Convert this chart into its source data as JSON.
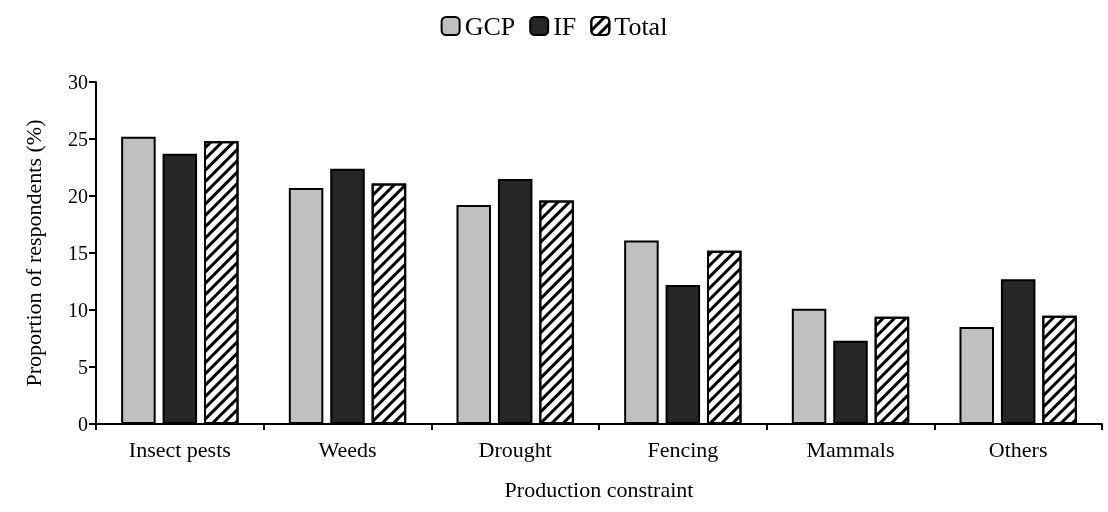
{
  "chart_data": {
    "type": "bar",
    "xlabel": "Production constraint",
    "ylabel": "Proportion of respondents (%)",
    "categories": [
      "Insect pests",
      "Weeds",
      "Drought",
      "Fencing",
      "Mammals",
      "Others"
    ],
    "series": [
      {
        "name": "GCP",
        "color": "#c0c0c0",
        "values": [
          25.2,
          20.7,
          19.2,
          16.1,
          10.1,
          8.5
        ]
      },
      {
        "name": "IF",
        "color": "#262626",
        "values": [
          23.7,
          22.4,
          21.5,
          12.2,
          7.3,
          12.7
        ]
      },
      {
        "name": "Total",
        "color": "#ffffff",
        "values": [
          24.8,
          21.1,
          19.6,
          15.2,
          9.4,
          9.5
        ]
      }
    ],
    "ylim": [
      0,
      30
    ],
    "yticks": [
      0,
      5,
      10,
      15,
      20,
      25,
      30
    ],
    "grid": false,
    "legend": "top"
  }
}
